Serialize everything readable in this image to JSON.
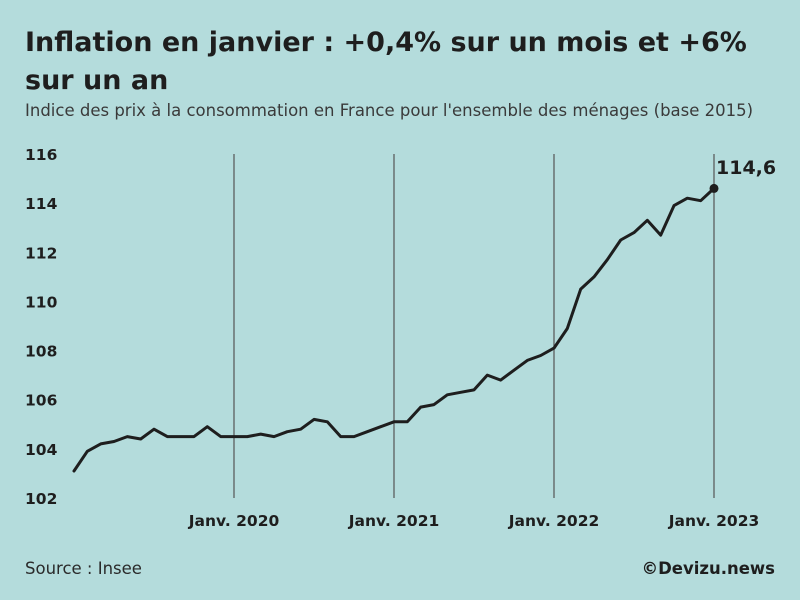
{
  "header": {
    "title": "Inflation en janvier : +0,4% sur un mois et +6% sur un an",
    "subtitle": "Indice des prix à la consommation en France pour l'ensemble des ménages (base 2015)"
  },
  "footer": {
    "source": "Source : Insee",
    "brand": "©Devizu.news"
  },
  "colors": {
    "background": "#b4dcdc",
    "line": "#1e1e1e",
    "vertical_rules": "#555555"
  },
  "chart_data": {
    "type": "line",
    "title": "Inflation en janvier : +0,4% sur un mois et +6% sur un an",
    "subtitle": "Indice des prix à la consommation en France pour l'ensemble des ménages (base 2015)",
    "xlabel": "",
    "ylabel": "",
    "x_start": "2019-01",
    "x_end": "2023-01",
    "xlim": [
      "2019-01",
      "2023-01"
    ],
    "ylim": [
      102,
      116
    ],
    "y_ticks": [
      "102",
      "104",
      "106",
      "108",
      "110",
      "112",
      "114",
      "116"
    ],
    "y_tick_values": [
      102,
      104,
      106,
      108,
      110,
      112,
      114,
      116
    ],
    "x_ticks": [
      {
        "label": "Janv. 2020",
        "x": "2020-01"
      },
      {
        "label": "Janv. 2021",
        "x": "2021-01"
      },
      {
        "label": "Janv. 2022",
        "x": "2022-01"
      },
      {
        "label": "Janv. 2023",
        "x": "2023-01"
      }
    ],
    "grid": "vertical lines at each January",
    "legend": "none",
    "x": [
      "2019-01",
      "2019-02",
      "2019-03",
      "2019-04",
      "2019-05",
      "2019-06",
      "2019-07",
      "2019-08",
      "2019-09",
      "2019-10",
      "2019-11",
      "2019-12",
      "2020-01",
      "2020-02",
      "2020-03",
      "2020-04",
      "2020-05",
      "2020-06",
      "2020-07",
      "2020-08",
      "2020-09",
      "2020-10",
      "2020-11",
      "2020-12",
      "2021-01",
      "2021-02",
      "2021-03",
      "2021-04",
      "2021-05",
      "2021-06",
      "2021-07",
      "2021-08",
      "2021-09",
      "2021-10",
      "2021-11",
      "2021-12",
      "2022-01",
      "2022-02",
      "2022-03",
      "2022-04",
      "2022-05",
      "2022-06",
      "2022-07",
      "2022-08",
      "2022-09",
      "2022-10",
      "2022-11",
      "2022-12",
      "2023-01"
    ],
    "values": [
      103.1,
      103.9,
      104.2,
      104.3,
      104.5,
      104.4,
      104.8,
      104.5,
      104.5,
      104.5,
      104.9,
      104.5,
      104.5,
      104.5,
      104.6,
      104.5,
      104.7,
      104.8,
      105.2,
      105.1,
      104.5,
      104.5,
      104.7,
      104.9,
      105.1,
      105.1,
      105.7,
      105.8,
      106.2,
      106.3,
      106.4,
      107.0,
      106.8,
      107.2,
      107.6,
      107.8,
      108.1,
      108.9,
      110.5,
      111.0,
      111.7,
      112.5,
      112.8,
      113.3,
      112.7,
      113.9,
      114.2,
      114.1,
      114.6
    ],
    "last_value_label": "114,6"
  }
}
